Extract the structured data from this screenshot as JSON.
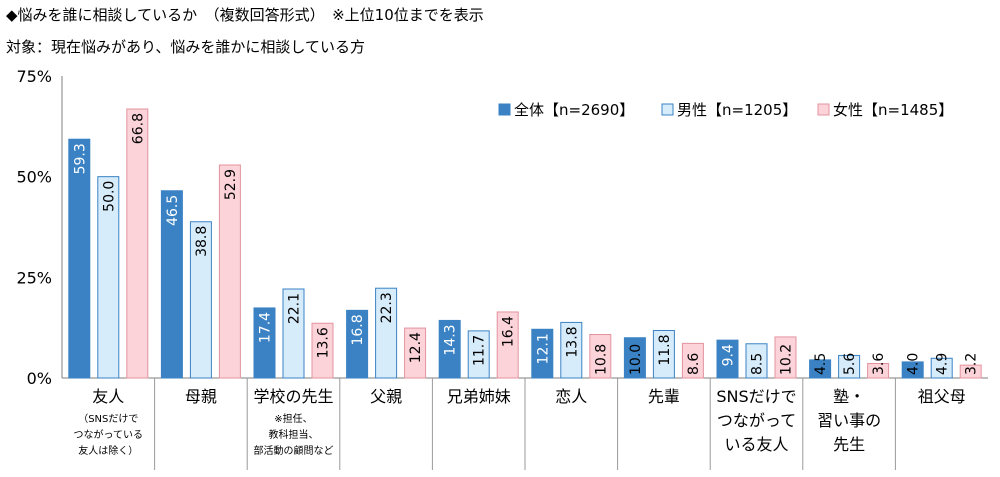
{
  "title": "◆悩みを誰に相談しているか　（複数回答形式）　※上位10位までを表示",
  "subtitle": "対象：現在悩みがあり、悩みを誰かに相談している方",
  "colors": {
    "all": "#3a82c4",
    "male": "#d7ecfb",
    "female": "#fbd3d9",
    "male_border": "#3a82c4",
    "female_border": "#e3939e"
  },
  "chart_data": {
    "type": "bar",
    "ylim": [
      0,
      75
    ],
    "yticks": [
      "0%",
      "25%",
      "50%",
      "75%"
    ],
    "ytick_values": [
      0,
      25,
      50,
      75
    ],
    "legend_position": "top-right",
    "grid": false,
    "categories": [
      {
        "label": [
          "友人"
        ],
        "note": [
          "（SNSだけで",
          "つながっている",
          "友人は除く）"
        ]
      },
      {
        "label": [
          "母親"
        ],
        "note": []
      },
      {
        "label": [
          "学校の先生"
        ],
        "note": [
          "※担任、",
          "教科担当、",
          "部活動の顧問など"
        ]
      },
      {
        "label": [
          "父親"
        ],
        "note": []
      },
      {
        "label": [
          "兄弟姉妹"
        ],
        "note": []
      },
      {
        "label": [
          "恋人"
        ],
        "note": []
      },
      {
        "label": [
          "先輩"
        ],
        "note": []
      },
      {
        "label": [
          "SNSだけで",
          "つながって",
          "いる友人"
        ],
        "note": []
      },
      {
        "label": [
          "塾・",
          "習い事の",
          "先生"
        ],
        "note": []
      },
      {
        "label": [
          "祖父母"
        ],
        "note": []
      }
    ],
    "series": [
      {
        "name": "全体【n=2690】",
        "key": "all",
        "values": [
          59.3,
          46.5,
          17.4,
          16.8,
          14.3,
          12.1,
          10.0,
          9.4,
          4.5,
          4.0
        ]
      },
      {
        "name": "男性【n=1205】",
        "key": "male",
        "values": [
          50.0,
          38.8,
          22.1,
          22.3,
          11.7,
          13.8,
          11.8,
          8.5,
          5.6,
          4.9
        ]
      },
      {
        "name": "女性【n=1485】",
        "key": "female",
        "values": [
          66.8,
          52.9,
          13.6,
          12.4,
          16.4,
          10.8,
          8.6,
          10.2,
          3.6,
          3.2
        ]
      }
    ]
  }
}
